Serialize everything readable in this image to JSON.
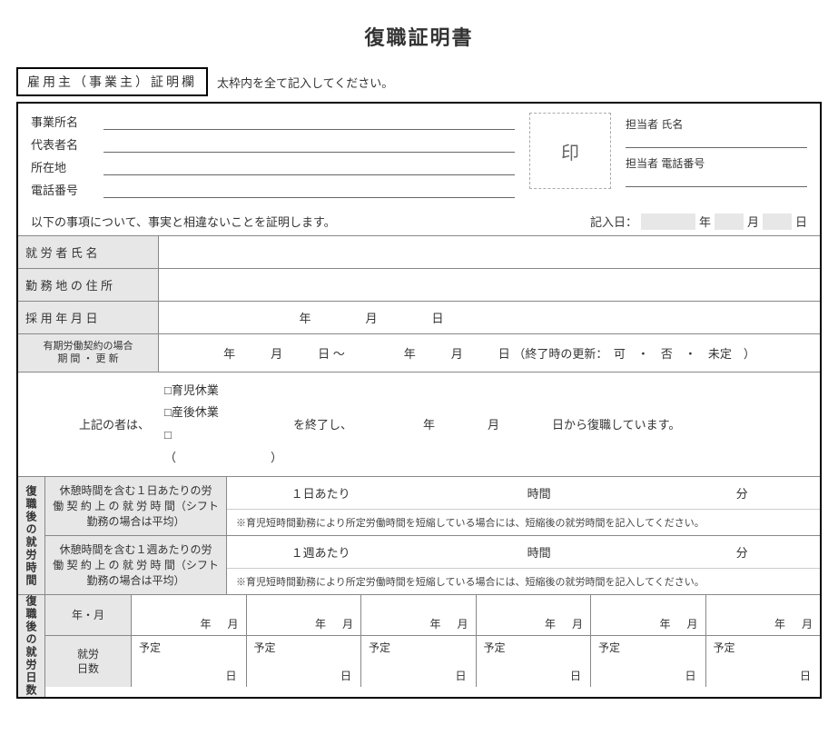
{
  "title": "復職証明書",
  "employer_header_box": "雇用主（事業主）証明欄",
  "employer_header_note": "太枠内を全て記入してください。",
  "top": {
    "office_name_label": "事業所名",
    "rep_name_label": "代表者名",
    "address_label": "所在地",
    "phone_label": "電話番号",
    "seal": "印",
    "contact_name_label": "担当者 氏名",
    "contact_phone_label": "担当者 電話番号"
  },
  "statement": "以下の事項について、事実と相違ないことを証明します。",
  "entry_date_label": "記入日：",
  "unit_year": "年",
  "unit_month": "月",
  "unit_day": "日",
  "rows": {
    "worker_name": "就 労 者 氏 名",
    "work_address": "勤 務 地 の 住 所",
    "hire_date": "採 用 年 月 日",
    "fixed_term_label_1": "有期労働契約の場合",
    "fixed_term_label_2": "期 間 ・ 更 新",
    "fixed_term_body": "年　　　月　　　日 ～　　　　　年　　　月　　　日 （終了時の更新：　可　・　否　・　未定　）"
  },
  "leave": {
    "lead": "上記の者は、",
    "opt1": "□育児休業",
    "opt2": "□産後休業",
    "opt3": "□（　　　　　　　　）",
    "after1": "を終了し、",
    "after2": "年",
    "after3": "月",
    "after4": "日から復職しています。"
  },
  "work_hours": {
    "vertical_label": "復職後の就労時間",
    "per_day_label": "休憩時間を含む１日あたりの労 働 契 約 上 の 就 労 時 間（シフト勤務の場合は平均）",
    "per_week_label": "休憩時間を含む１週あたりの労 働 契 約 上 の 就 労 時 間（シフト勤務の場合は平均）",
    "per_day_prefix": "１日あたり",
    "per_week_prefix": "１週あたり",
    "unit_hours": "時間",
    "unit_minutes": "分",
    "note": "※育児短時間勤務により所定労働時間を短縮している場合には、短縮後の就労時間を記入してください。"
  },
  "work_days": {
    "vertical_label": "復職後の就労日数",
    "row1_label": "年・月",
    "row2_label_1": "就労",
    "row2_label_2": "日数",
    "cell_year": "年",
    "cell_month": "月",
    "cell_plan": "予定",
    "cell_day": "日",
    "months_count": 6
  }
}
